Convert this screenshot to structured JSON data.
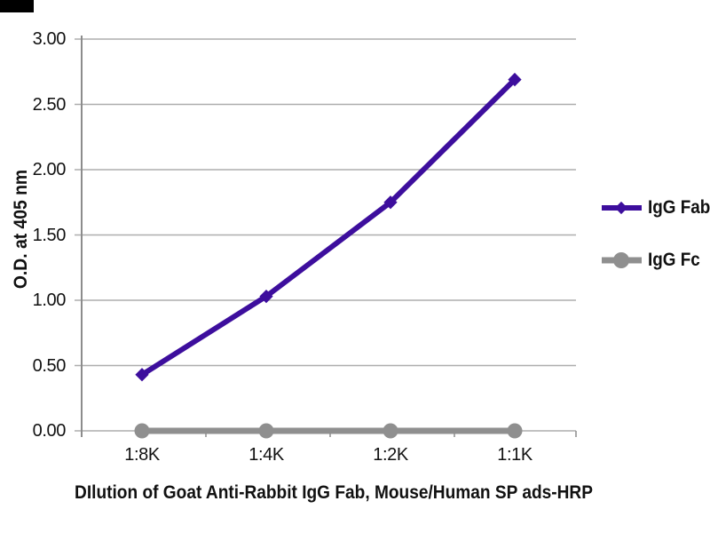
{
  "corner_mark": {
    "color": "#000000"
  },
  "chart_data": {
    "type": "line",
    "title": "DIlution of Goat Anti-Rabbit IgG Fab, Mouse/Human SP ads-HRP",
    "xlabel": "DIlution of Goat Anti-Rabbit IgG Fab, Mouse/Human SP ads-HRP",
    "ylabel": "O.D. at 405 nm",
    "categories": [
      "1:8K",
      "1:4K",
      "1:2K",
      "1:1K"
    ],
    "series": [
      {
        "name": "IgG Fab",
        "values": [
          0.43,
          1.03,
          1.75,
          2.69
        ],
        "color": "#3D0E9D",
        "marker": "diamond"
      },
      {
        "name": "IgG Fc",
        "values": [
          0.0,
          0.0,
          0.0,
          0.0
        ],
        "color": "#8F8F8F",
        "marker": "circle"
      }
    ],
    "ylim": [
      0,
      3
    ],
    "ytick_step": 0.5,
    "ytick_labels": [
      "0.00",
      "0.50",
      "1.00",
      "1.50",
      "2.00",
      "2.50",
      "3.00"
    ],
    "grid": "horizontal",
    "legend_position": "right",
    "grid_color": "#ADADAD",
    "axis_color": "#8C8C8C",
    "text_color": "#111111",
    "background_color": "#FFFFFF"
  }
}
